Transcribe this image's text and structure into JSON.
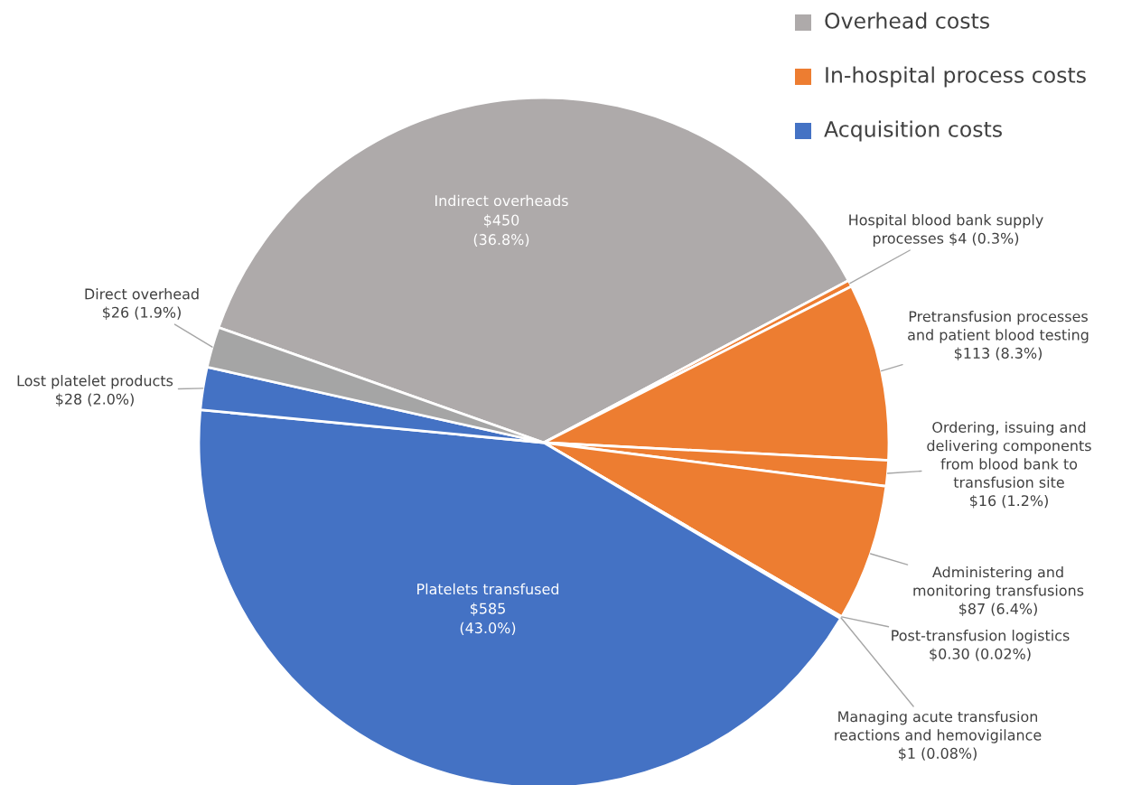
{
  "chart_data": {
    "type": "pie",
    "categories": [
      "Indirect overheads",
      "Hospital blood bank supply processes",
      "Pretransfusion processes and patient blood testing",
      "Ordering, issuing and delivering components from blood bank to transfusion site",
      "Administering and monitoring transfusions",
      "Post-transfusion logistics",
      "Managing acute transfusion reactions and hemovigilance",
      "Platelets transfused",
      "Lost platelet products",
      "Direct overhead"
    ],
    "values": [
      36.8,
      0.3,
      8.3,
      1.2,
      6.4,
      0.02,
      0.08,
      43.0,
      2.0,
      1.9
    ],
    "value_labels": [
      "$450 (36.8%)",
      "$4 (0.3%)",
      "$113 (8.3%)",
      "$16 (1.2%)",
      "$87 (6.4%)",
      "$0.30 (0.02%)",
      "$1 (0.08%)",
      "$585 (43.0%)",
      "$28 (2.0%)",
      "$26 (1.9%)"
    ],
    "colors": [
      "#aeaaaa",
      "#ed7d31",
      "#ed7d31",
      "#ed7d31",
      "#ed7d31",
      "#ed7d31",
      "#ed7d31",
      "#4472c4",
      "#4472c4",
      "#a5a5a5"
    ],
    "annotations": [
      "Overhead costs",
      "In-hospital process costs",
      "Acquisition costs"
    ]
  }
}
